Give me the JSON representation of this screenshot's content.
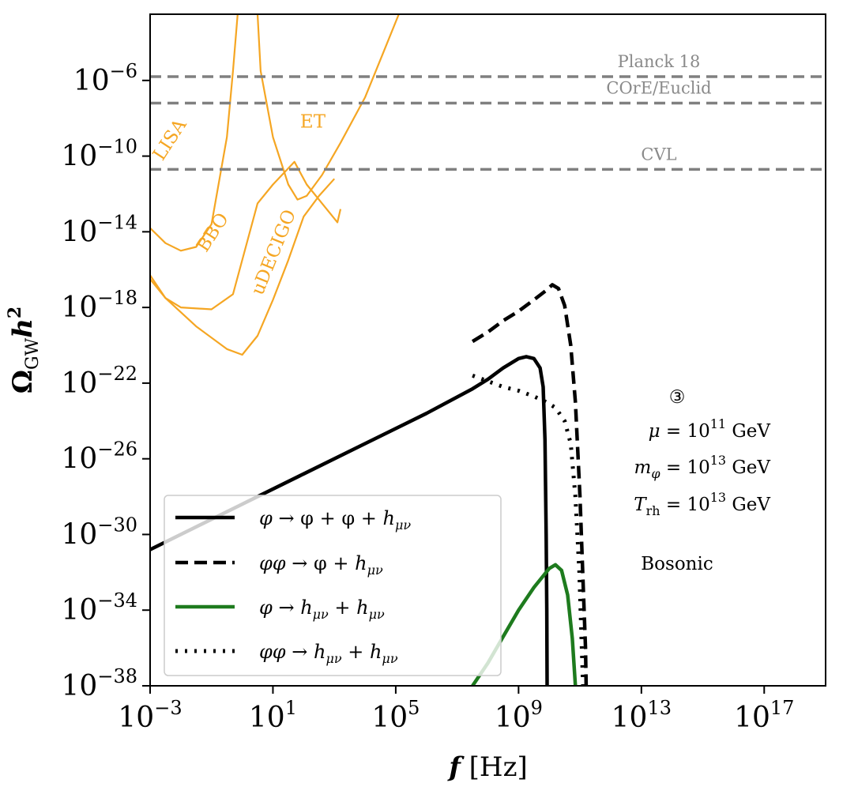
{
  "chart_data": {
    "type": "line",
    "xscale": "log",
    "yscale": "log",
    "xlim_log10": [
      -3,
      19
    ],
    "ylim_log10": [
      -38,
      -2.5
    ],
    "xticks": [
      {
        "log": -3,
        "base": "10",
        "exp": "−3"
      },
      {
        "log": 1,
        "base": "10",
        "exp": "1"
      },
      {
        "log": 5,
        "base": "10",
        "exp": "5"
      },
      {
        "log": 9,
        "base": "10",
        "exp": "9"
      },
      {
        "log": 13,
        "base": "10",
        "exp": "13"
      },
      {
        "log": 17,
        "base": "10",
        "exp": "17"
      }
    ],
    "yticks": [
      {
        "log": -6,
        "base": "10",
        "exp": "−6"
      },
      {
        "log": -10,
        "base": "10",
        "exp": "−10"
      },
      {
        "log": -14,
        "base": "10",
        "exp": "−14"
      },
      {
        "log": -18,
        "base": "10",
        "exp": "−18"
      },
      {
        "log": -22,
        "base": "10",
        "exp": "−22"
      },
      {
        "log": -26,
        "base": "10",
        "exp": "−26"
      },
      {
        "log": -30,
        "base": "10",
        "exp": "−30"
      },
      {
        "log": -34,
        "base": "10",
        "exp": "−34"
      },
      {
        "log": -38,
        "base": "10",
        "exp": "−38"
      }
    ],
    "xlabel": {
      "symbol": "f",
      "unit": "[Hz]"
    },
    "ylabel": {
      "symbol": "Ω",
      "sub": "GW",
      "tail": "h",
      "sup": "2"
    },
    "hlines": [
      {
        "name": "Planck 18",
        "log_y": -5.8,
        "color": "#808080"
      },
      {
        "name": "COrE/Euclid",
        "log_y": -7.2,
        "color": "#808080"
      },
      {
        "name": "CVL",
        "log_y": -10.7,
        "color": "#808080"
      }
    ],
    "detectors": [
      {
        "name": "LISA",
        "color": "#f5a623",
        "points": [
          [
            -3,
            -13.8
          ],
          [
            -2.5,
            -14.6
          ],
          [
            -2,
            -15
          ],
          [
            -1.5,
            -14.8
          ],
          [
            -1,
            -13.6
          ],
          [
            -0.5,
            -9
          ],
          [
            -0.3,
            -5.5
          ],
          [
            -0.15,
            -2.5
          ]
        ]
      },
      {
        "name": "ET",
        "color": "#f5a623",
        "points": [
          [
            0.5,
            -2.5
          ],
          [
            0.6,
            -5.5
          ],
          [
            1,
            -9
          ],
          [
            1.5,
            -11.5
          ],
          [
            1.8,
            -12.3
          ],
          [
            2.1,
            -12.1
          ],
          [
            2.6,
            -11
          ],
          [
            3.2,
            -9.3
          ],
          [
            4,
            -6.9
          ],
          [
            4.6,
            -4.5
          ],
          [
            5.1,
            -2.5
          ]
        ]
      },
      {
        "name": "BBO",
        "color": "#f5a623",
        "points": [
          [
            -3,
            -16.5
          ],
          [
            -2.5,
            -17.5
          ],
          [
            -2,
            -18
          ],
          [
            -1,
            -18.1
          ],
          [
            -0.3,
            -17.3
          ],
          [
            0.5,
            -12.5
          ],
          [
            1,
            -11.5
          ],
          [
            1.7,
            -10.3
          ],
          [
            2.1,
            -11.5
          ],
          [
            2.6,
            -12.5
          ],
          [
            3.1,
            -13.5
          ],
          [
            3.2,
            -12.8
          ]
        ]
      },
      {
        "name": "uDECIGO",
        "color": "#f5a623",
        "points": [
          [
            -3,
            -16.3
          ],
          [
            -2.5,
            -17.5
          ],
          [
            -1.5,
            -19
          ],
          [
            -0.5,
            -20.2
          ],
          [
            0,
            -20.5
          ],
          [
            0.5,
            -19.5
          ],
          [
            1,
            -17.6
          ],
          [
            1.5,
            -15.5
          ],
          [
            2,
            -13.2
          ],
          [
            2.5,
            -12.1
          ],
          [
            3,
            -11.2
          ]
        ]
      }
    ],
    "series": [
      {
        "name": "phi_to_phiphi_h",
        "label": {
          "a": "φ",
          "b": "→ φ + φ + ",
          "h": "h",
          "sub": "μν"
        },
        "color": "#000000",
        "style": "solid",
        "width": 4.5,
        "points": [
          [
            -3,
            -30.8
          ],
          [
            0,
            -28.4
          ],
          [
            2,
            -26.8
          ],
          [
            4,
            -25.2
          ],
          [
            6,
            -23.6
          ],
          [
            7.5,
            -22.3
          ],
          [
            8,
            -21.8
          ],
          [
            8.5,
            -21.2
          ],
          [
            9,
            -20.7
          ],
          [
            9.25,
            -20.6
          ],
          [
            9.5,
            -20.7
          ],
          [
            9.7,
            -21.2
          ],
          [
            9.8,
            -22.2
          ],
          [
            9.86,
            -25
          ],
          [
            9.9,
            -30
          ],
          [
            9.92,
            -34
          ],
          [
            9.93,
            -38
          ]
        ]
      },
      {
        "name": "phivarphi_to_varphi_h",
        "label": {
          "a": "φφ",
          "b": "→ φ + ",
          "h": "h",
          "sub": "μν"
        },
        "color": "#000000",
        "style": "dashed",
        "width": 4.5,
        "points": [
          [
            7.5,
            -19.8
          ],
          [
            8,
            -19.3
          ],
          [
            8.5,
            -18.7
          ],
          [
            9,
            -18.2
          ],
          [
            9.5,
            -17.6
          ],
          [
            9.9,
            -17.1
          ],
          [
            10.1,
            -16.8
          ],
          [
            10.3,
            -17
          ],
          [
            10.5,
            -17.9
          ],
          [
            10.7,
            -20
          ],
          [
            10.85,
            -23
          ],
          [
            11,
            -28
          ],
          [
            11.1,
            -32.5
          ],
          [
            11.18,
            -36
          ],
          [
            11.2,
            -38
          ]
        ]
      },
      {
        "name": "phi_to_hh",
        "label": {
          "a": "φ",
          "b": "→ ",
          "h": "h",
          "sub": "μν",
          "c": " + ",
          "h2": "h",
          "sub2": "μν"
        },
        "color": "#1e7b1e",
        "style": "solid",
        "width": 4.5,
        "points": [
          [
            7.5,
            -38
          ],
          [
            8,
            -36.8
          ],
          [
            8.5,
            -35.4
          ],
          [
            9,
            -34
          ],
          [
            9.5,
            -32.8
          ],
          [
            10,
            -31.8
          ],
          [
            10.2,
            -31.6
          ],
          [
            10.4,
            -31.9
          ],
          [
            10.6,
            -33.2
          ],
          [
            10.75,
            -35.5
          ],
          [
            10.85,
            -38
          ]
        ]
      },
      {
        "name": "phiphi_to_hh",
        "label": {
          "a": "φφ",
          "b": "→ ",
          "h": "h",
          "sub": "μν",
          "c": " + ",
          "h2": "h",
          "sub2": "μν"
        },
        "color": "#000000",
        "style": "dotted",
        "width": 5,
        "points": [
          [
            7.5,
            -21.6
          ],
          [
            8,
            -21.9
          ],
          [
            8.5,
            -22.2
          ],
          [
            9,
            -22.4
          ],
          [
            9.5,
            -22.7
          ],
          [
            9.9,
            -23
          ],
          [
            10.2,
            -23.3
          ],
          [
            10.5,
            -24
          ],
          [
            10.7,
            -25.2
          ],
          [
            10.85,
            -28
          ],
          [
            10.98,
            -32
          ],
          [
            11.05,
            -35.5
          ],
          [
            11.1,
            -38
          ]
        ]
      }
    ],
    "annotations": {
      "marker": "③",
      "mu": {
        "sym": "μ",
        "eq": " = 10",
        "exp": "11",
        "unit": " GeV"
      },
      "mphi": {
        "sym": "m",
        "sub": "φ",
        "eq": " = 10",
        "exp": "13",
        "unit": " GeV"
      },
      "trh": {
        "sym": "T",
        "sub": "rh",
        "eq": " = 10",
        "exp": "13",
        "unit": " GeV"
      },
      "case": "Bosonic"
    }
  }
}
